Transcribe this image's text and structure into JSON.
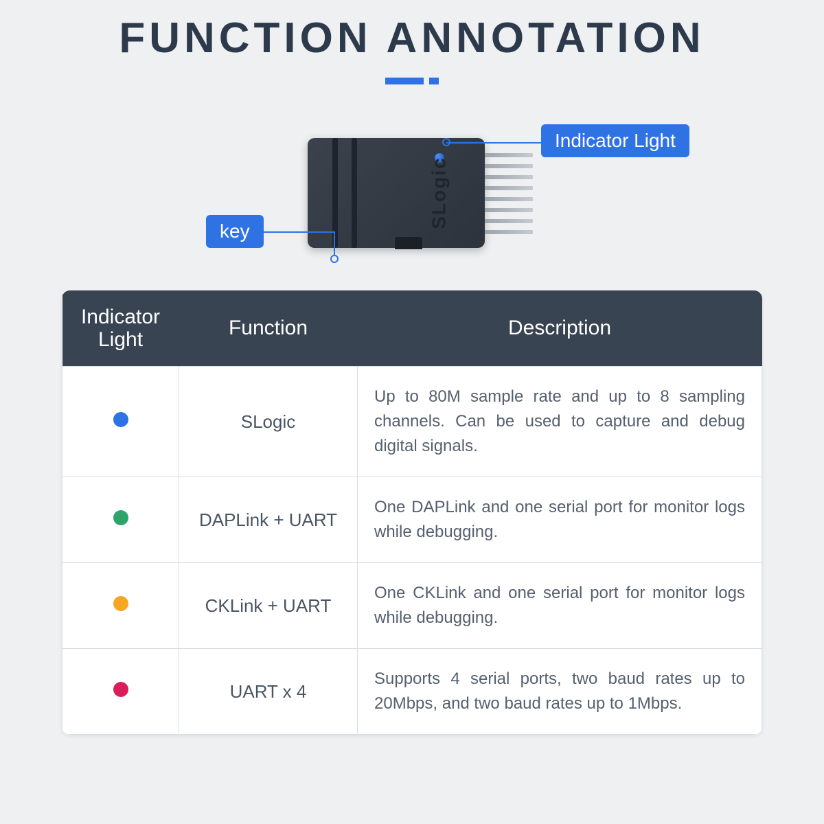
{
  "title": "FUNCTION ANNOTATION",
  "callouts": {
    "indicator": "Indicator Light",
    "key": "key"
  },
  "device": {
    "brand": "SLogic",
    "pin_count": 8
  },
  "table": {
    "headers": [
      "Indicator Light",
      "Function",
      "Description"
    ],
    "rows": [
      {
        "color": "#2f72e4",
        "function": "SLogic",
        "description": "Up to 80M sample rate and up to 8 sampling channels. Can be used to capture and debug digital signals."
      },
      {
        "color": "#2ea36a",
        "function": "DAPLink + UART",
        "description": "One DAPLink and one serial port for monitor logs while debugging."
      },
      {
        "color": "#f5a623",
        "function": "CKLink + UART",
        "description": "One CKLink and one serial port for monitor logs while debugging."
      },
      {
        "color": "#d81e5b",
        "function": "UART x 4",
        "description": "Supports 4 serial ports, two baud rates up to 20Mbps, and two baud rates up to 1Mbps."
      }
    ]
  },
  "styling": {
    "background": "#eef0f2",
    "title_color": "#2c3a4b",
    "accent": "#2f72e4",
    "table_header_bg": "#394452",
    "table_border": "#d9dde2",
    "text_color": "#55606e"
  }
}
